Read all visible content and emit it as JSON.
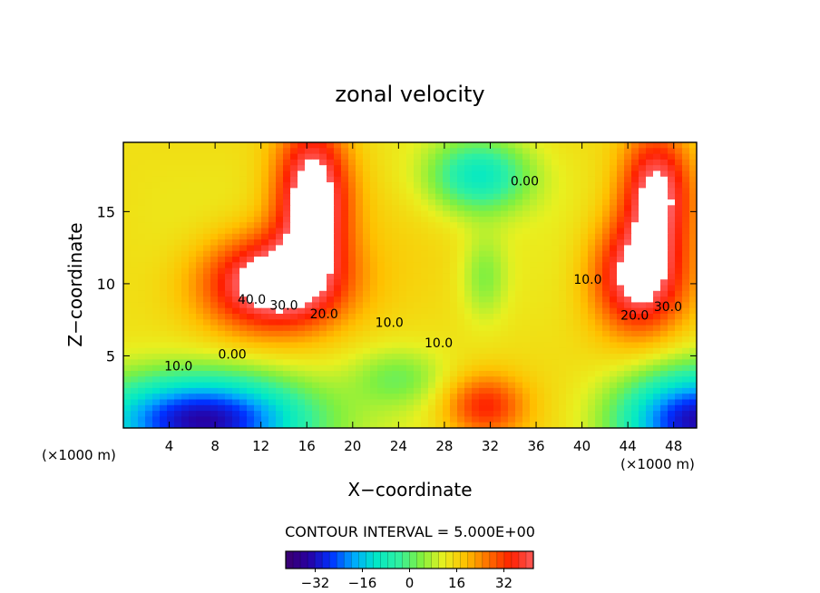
{
  "chart_data": {
    "type": "heatmap",
    "title": "zonal velocity",
    "xlabel": "X−coordinate",
    "ylabel": "Z−coordinate",
    "x_unit_left": "(×1000 m)",
    "x_unit_right": "(×1000 m)",
    "xlim": [
      0,
      50
    ],
    "ylim": [
      0,
      19.8
    ],
    "x_ticks": [
      "4",
      "8",
      "12",
      "16",
      "20",
      "24",
      "28",
      "32",
      "36",
      "40",
      "44",
      "48"
    ],
    "y_ticks": [
      "5",
      "10",
      "15"
    ],
    "contour_labels": [
      {
        "text": "40.0",
        "x": 11.2,
        "y": 8.6
      },
      {
        "text": "30.0",
        "x": 14.0,
        "y": 8.2
      },
      {
        "text": "20.0",
        "x": 17.5,
        "y": 7.6
      },
      {
        "text": "10.0",
        "x": 23.2,
        "y": 7.0
      },
      {
        "text": "10.0",
        "x": 27.5,
        "y": 5.6
      },
      {
        "text": "10.0",
        "x": 4.8,
        "y": 4.0
      },
      {
        "text": "0.00",
        "x": 9.5,
        "y": 4.8
      },
      {
        "text": "0.00",
        "x": 35.0,
        "y": 16.8
      },
      {
        "text": "10.0",
        "x": 40.5,
        "y": 10.0
      },
      {
        "text": "20.0",
        "x": 44.6,
        "y": 7.5
      },
      {
        "text": "30.0",
        "x": 47.5,
        "y": 8.1
      }
    ],
    "contour_interval_text": "CONTOUR INTERVAL = 5.000E+00",
    "colorbar": {
      "min": -42,
      "max": 42,
      "step": 5,
      "tick_labels": [
        "−32",
        "−16",
        "0",
        "16",
        "32"
      ],
      "tick_values": [
        -32,
        -16,
        0,
        16,
        32
      ]
    },
    "grid": false,
    "colors": {
      "min": "#2b0068",
      "max": "#ffffff",
      "scale": [
        "#3c0070",
        "#2800a0",
        "#0030ff",
        "#00a8ff",
        "#00e8c8",
        "#30f0a0",
        "#80f040",
        "#e8f020",
        "#ffc000",
        "#ff7000",
        "#ff2000",
        "#ff5a5a"
      ]
    }
  }
}
